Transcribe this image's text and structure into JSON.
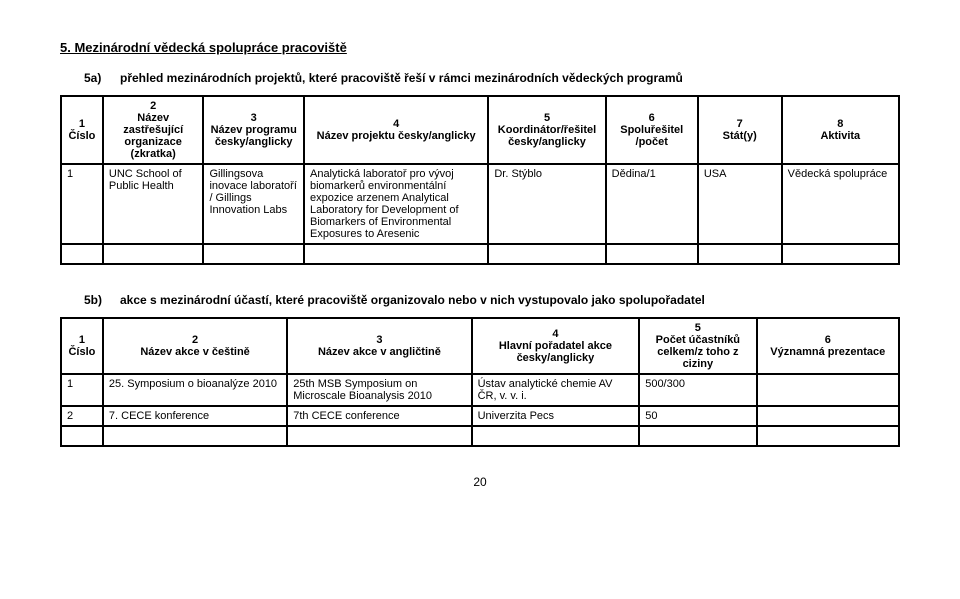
{
  "heading_5": "5. Mezinárodní vědecká spolupráce pracoviště",
  "sub_5a": {
    "label": "5a)",
    "text": "přehled mezinárodních projektů, které pracoviště řeší v rámci mezinárodních vědeckých programů"
  },
  "table_a": {
    "col_widths": [
      "5%",
      "12%",
      "12%",
      "22%",
      "14%",
      "11%",
      "10%",
      "14%"
    ],
    "headers": [
      {
        "num": "1",
        "lbl": "Číslo"
      },
      {
        "num": "2",
        "lbl": "Název zastřešující organizace (zkratka)"
      },
      {
        "num": "3",
        "lbl": "Název programu česky/anglicky"
      },
      {
        "num": "4",
        "lbl": "Název projektu česky/anglicky"
      },
      {
        "num": "5",
        "lbl": "Koordinátor/řešitel česky/anglicky"
      },
      {
        "num": "6",
        "lbl": "Spoluřešitel /počet"
      },
      {
        "num": "7",
        "lbl": "Stát(y)"
      },
      {
        "num": "8",
        "lbl": "Aktivita"
      }
    ],
    "rows": [
      [
        "1",
        "UNC School of Public Health",
        "Gillingsova inovace laboratoří / Gillings Innovation Labs",
        "Analytická laboratoř pro vývoj biomarkerů environmentální expozice arzenem\nAnalytical Laboratory for Development of Biomarkers of Environmental Exposures to Aresenic",
        "Dr. Stýblo",
        "Dědina/1",
        "USA",
        "Vědecká spolupráce"
      ],
      [
        "",
        "",
        "",
        "",
        "",
        "",
        "",
        ""
      ]
    ]
  },
  "sub_5b": {
    "label": "5b)",
    "text": "akce s mezinárodní účastí, které pracoviště organizovalo nebo v nich vystupovalo jako spolupořadatel"
  },
  "table_b": {
    "col_widths": [
      "5%",
      "22%",
      "22%",
      "20%",
      "14%",
      "17%"
    ],
    "headers": [
      {
        "num": "1",
        "lbl": "Číslo"
      },
      {
        "num": "2",
        "lbl": "Název akce v češtině"
      },
      {
        "num": "3",
        "lbl": "Název akce v angličtině"
      },
      {
        "num": "4",
        "lbl": "Hlavní pořadatel akce česky/anglicky"
      },
      {
        "num": "5",
        "lbl": "Počet účastníků celkem/z toho z ciziny"
      },
      {
        "num": "6",
        "lbl": "Významná prezentace"
      }
    ],
    "rows": [
      [
        "1",
        "25. Symposium o bioanalýze 2010",
        "25th MSB Symposium on Microscale Bioanalysis 2010",
        "Ústav analytické chemie AV ČR, v. v. i.",
        "500/300",
        ""
      ],
      [
        "2",
        "7. CECE konference",
        "7th CECE conference",
        "Univerzita Pecs",
        "50",
        ""
      ],
      [
        "",
        "",
        "",
        "",
        "",
        ""
      ]
    ]
  },
  "page_number": "20"
}
